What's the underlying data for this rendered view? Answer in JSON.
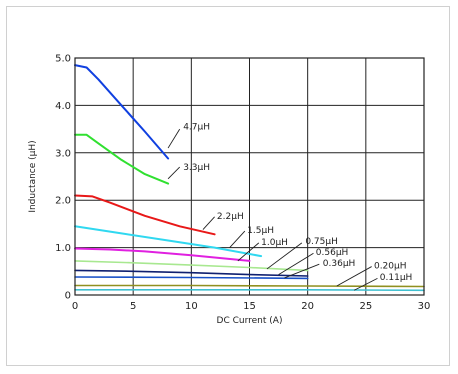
{
  "chart_data": {
    "type": "line",
    "xlabel": "DC Current (A)",
    "ylabel": "Inductance (µH)",
    "xlim": [
      0,
      30
    ],
    "ylim": [
      0,
      5.0
    ],
    "xticks": [
      "0",
      "5",
      "10",
      "15",
      "20",
      "25",
      "30"
    ],
    "yticks": [
      "0",
      "1.0",
      "2.0",
      "3.0",
      "4.0",
      "5.0"
    ],
    "grid": true,
    "series": [
      {
        "name": "4.7µH",
        "color": "#1040e0",
        "x": [
          0,
          1,
          2,
          4,
          6,
          8
        ],
        "y": [
          4.85,
          4.8,
          4.55,
          4.0,
          3.45,
          2.88
        ],
        "label_at": [
          9.3,
          3.55
        ],
        "leader_from": [
          8.0,
          3.1
        ],
        "leader_to": [
          9.0,
          3.5
        ]
      },
      {
        "name": "3.3µH",
        "color": "#30e030",
        "x": [
          0,
          1,
          2,
          4,
          6,
          8
        ],
        "y": [
          3.38,
          3.38,
          3.2,
          2.85,
          2.55,
          2.35
        ],
        "label_at": [
          9.3,
          2.7
        ],
        "leader_from": [
          8.0,
          2.45
        ],
        "leader_to": [
          9.0,
          2.7
        ]
      },
      {
        "name": "2.2µH",
        "color": "#e81818",
        "x": [
          0,
          1.5,
          3,
          6,
          9,
          12
        ],
        "y": [
          2.1,
          2.08,
          1.95,
          1.67,
          1.45,
          1.28
        ],
        "label_at": [
          12.2,
          1.67
        ],
        "leader_from": [
          11.0,
          1.38
        ],
        "leader_to": [
          12.0,
          1.65
        ]
      },
      {
        "name": "1.5µH",
        "color": "#30d8f0",
        "x": [
          0,
          4,
          8,
          12,
          16
        ],
        "y": [
          1.45,
          1.3,
          1.15,
          1.0,
          0.82
        ],
        "label_at": [
          14.8,
          1.37
        ],
        "leader_from": [
          13.3,
          1.0
        ],
        "leader_to": [
          14.6,
          1.35
        ]
      },
      {
        "name": "1.0µH",
        "color": "#e020e0",
        "x": [
          0,
          3,
          6,
          10,
          15
        ],
        "y": [
          0.98,
          0.96,
          0.92,
          0.84,
          0.72
        ],
        "label_at": [
          16.0,
          1.12
        ],
        "leader_from": [
          14.0,
          0.72
        ],
        "leader_to": [
          15.8,
          1.1
        ]
      },
      {
        "name": "0.75µH",
        "color": "#a8e890",
        "x": [
          0,
          5,
          10,
          15,
          20
        ],
        "y": [
          0.72,
          0.68,
          0.63,
          0.58,
          0.52
        ],
        "label_at": [
          19.8,
          1.14
        ],
        "leader_from": [
          16.5,
          0.55
        ],
        "leader_to": [
          19.5,
          1.1
        ]
      },
      {
        "name": "0.56µH",
        "color": "#102070",
        "x": [
          0,
          5,
          10,
          15,
          20
        ],
        "y": [
          0.52,
          0.5,
          0.47,
          0.43,
          0.4
        ],
        "label_at": [
          20.7,
          0.91
        ],
        "leader_from": [
          17.5,
          0.43
        ],
        "leader_to": [
          20.5,
          0.88
        ]
      },
      {
        "name": "0.36µH",
        "color": "#1850c8",
        "x": [
          0,
          10,
          20
        ],
        "y": [
          0.38,
          0.37,
          0.35
        ],
        "label_at": [
          21.3,
          0.68
        ],
        "leader_from": [
          18.0,
          0.36
        ],
        "leader_to": [
          21.0,
          0.65
        ]
      },
      {
        "name": "0.20µH",
        "color": "#909020",
        "x": [
          0,
          10,
          20,
          30
        ],
        "y": [
          0.2,
          0.2,
          0.19,
          0.18
        ],
        "label_at": [
          25.7,
          0.62
        ],
        "leader_from": [
          22.5,
          0.19
        ],
        "leader_to": [
          25.5,
          0.6
        ]
      },
      {
        "name": "0.11µH",
        "color": "#40c0d0",
        "x": [
          0,
          10,
          20,
          30
        ],
        "y": [
          0.11,
          0.11,
          0.11,
          0.1
        ],
        "label_at": [
          26.2,
          0.38
        ],
        "leader_from": [
          24.0,
          0.1
        ],
        "leader_to": [
          26.0,
          0.35
        ]
      }
    ]
  }
}
